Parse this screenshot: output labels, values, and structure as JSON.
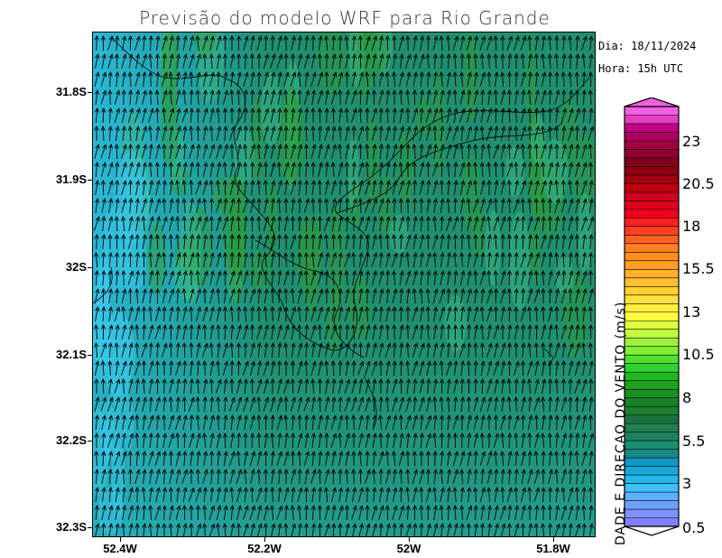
{
  "title": "Previsão do modelo WRF para Rio Grande",
  "date_text": "Dia: 18/11/2024",
  "hour_text": "Hora: 15h UTC",
  "colorbar_title": "VELOCIDADE E DIRECAO DO VENTO (m/s)",
  "colorbar_visible_title": "DADE E DIRECAO DO VENTO (m/s)",
  "colorbar_labels": [
    "0.5",
    "3",
    "5.5",
    "8",
    "10.5",
    "13",
    "15.5",
    "18",
    "20.5",
    "23"
  ],
  "y_ticks": [
    "31.8S",
    "31.9S",
    "32S",
    "32.1S",
    "32.2S",
    "32.3S"
  ],
  "x_ticks": [
    "52.4W",
    "52.2W",
    "52W",
    "51.8W"
  ],
  "colors": {
    "field_low": "#2ab8d6",
    "field_mid": "#1f8f6f",
    "field_green": "#2e9c3a",
    "arrow": "#000000",
    "coast": "#000000"
  },
  "colorbar_colors": [
    "#8080ff",
    "#7f90ff",
    "#6fa0ff",
    "#5fb0ff",
    "#40c0ff",
    "#20b8e8",
    "#18a8d8",
    "#1098c8",
    "#188888",
    "#1a9070",
    "#1e8060",
    "#208050",
    "#1e7040",
    "#1a8030",
    "#188028",
    "#1a9020",
    "#20a020",
    "#20b820",
    "#30d030",
    "#50e030",
    "#80f030",
    "#a0f040",
    "#c0ff40",
    "#e0ff40",
    "#ffff40",
    "#fff040",
    "#ffe040",
    "#ffd030",
    "#ffc030",
    "#ffb030",
    "#ffa020",
    "#ff9020",
    "#ff8020",
    "#ff6020",
    "#ff4020",
    "#ff2020",
    "#f00020",
    "#e00020",
    "#d00020",
    "#c00010",
    "#a00010",
    "#900010",
    "#800020",
    "#900030",
    "#a00040",
    "#b00060",
    "#c00080",
    "#e040c0",
    "#f060e0"
  ]
}
